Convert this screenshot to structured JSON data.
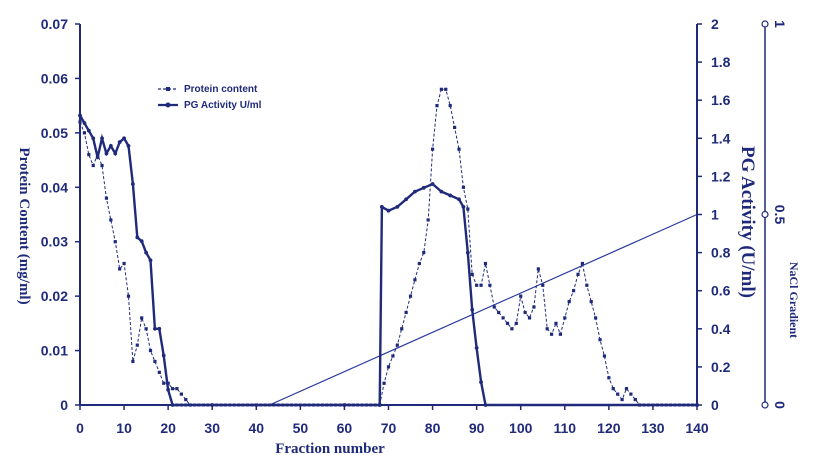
{
  "chart_data": {
    "type": "line",
    "xlabel": "Fraction number",
    "y_left_label": "Protein Content (mg/ml)",
    "y_right_label": "PG Activity (U/ml)",
    "y_right2_label": "NaCl Gradient",
    "xlim": [
      0,
      140
    ],
    "y_left_lim": [
      0,
      0.07
    ],
    "y_right_lim": [
      0,
      2
    ],
    "y_right2_lim": [
      0,
      1
    ],
    "x_ticks": [
      "0",
      "10",
      "20",
      "30",
      "40",
      "50",
      "60",
      "70",
      "80",
      "90",
      "100",
      "110",
      "120",
      "130",
      "140"
    ],
    "y_left_ticks": [
      "0",
      "0.01",
      "0.02",
      "0.03",
      "0.04",
      "0.05",
      "0.06",
      "0.07"
    ],
    "y_right_ticks": [
      "0",
      "0.2",
      "0.4",
      "0.6",
      "0.8",
      "1",
      "1.2",
      "1.4",
      "1.6",
      "1.8",
      "2"
    ],
    "y_right2_ticks": [
      "0",
      "0.5",
      "1"
    ],
    "legend": [
      {
        "label": "Protein content",
        "style": "dashed"
      },
      {
        "label": "PG Activity U/ml",
        "style": "solid"
      }
    ],
    "legend_position": "top-left",
    "colors": {
      "series": "#1f2a7a",
      "gradient": "#2a3aa0",
      "axes": "#1f2a7a"
    },
    "series": [
      {
        "name": "Protein content",
        "axis": "left",
        "points": [
          [
            0,
            0.052
          ],
          [
            1,
            0.05
          ],
          [
            2,
            0.046
          ],
          [
            3,
            0.044
          ],
          [
            4,
            0.046
          ],
          [
            5,
            0.044
          ],
          [
            6,
            0.038
          ],
          [
            7,
            0.034
          ],
          [
            8,
            0.03
          ],
          [
            9,
            0.025
          ],
          [
            10,
            0.026
          ],
          [
            11,
            0.02
          ],
          [
            12,
            0.008
          ],
          [
            13,
            0.011
          ],
          [
            14,
            0.016
          ],
          [
            15,
            0.014
          ],
          [
            16,
            0.01
          ],
          [
            17,
            0.008
          ],
          [
            18,
            0.006
          ],
          [
            19,
            0.004
          ],
          [
            20,
            0.004
          ],
          [
            21,
            0.003
          ],
          [
            22,
            0.003
          ],
          [
            23,
            0.002
          ],
          [
            24,
            0.001
          ],
          [
            25,
            0
          ],
          [
            40,
            0
          ],
          [
            60,
            0
          ],
          [
            68,
            0
          ],
          [
            69,
            0.004
          ],
          [
            70,
            0.007
          ],
          [
            71,
            0.009
          ],
          [
            72,
            0.011
          ],
          [
            73,
            0.014
          ],
          [
            74,
            0.017
          ],
          [
            75,
            0.02
          ],
          [
            76,
            0.023
          ],
          [
            77,
            0.026
          ],
          [
            78,
            0.028
          ],
          [
            79,
            0.034
          ],
          [
            80,
            0.047
          ],
          [
            81,
            0.055
          ],
          [
            82,
            0.058
          ],
          [
            83,
            0.058
          ],
          [
            84,
            0.055
          ],
          [
            85,
            0.051
          ],
          [
            86,
            0.047
          ],
          [
            87,
            0.04
          ],
          [
            88,
            0.036
          ],
          [
            89,
            0.024
          ],
          [
            90,
            0.022
          ],
          [
            91,
            0.022
          ],
          [
            92,
            0.026
          ],
          [
            93,
            0.022
          ],
          [
            94,
            0.018
          ],
          [
            95,
            0.017
          ],
          [
            96,
            0.016
          ],
          [
            97,
            0.015
          ],
          [
            98,
            0.014
          ],
          [
            99,
            0.015
          ],
          [
            100,
            0.02
          ],
          [
            101,
            0.017
          ],
          [
            102,
            0.016
          ],
          [
            103,
            0.018
          ],
          [
            104,
            0.025
          ],
          [
            105,
            0.022
          ],
          [
            106,
            0.014
          ],
          [
            107,
            0.013
          ],
          [
            108,
            0.015
          ],
          [
            109,
            0.013
          ],
          [
            110,
            0.016
          ],
          [
            111,
            0.019
          ],
          [
            112,
            0.021
          ],
          [
            113,
            0.024
          ],
          [
            114,
            0.026
          ],
          [
            115,
            0.022
          ],
          [
            116,
            0.019
          ],
          [
            117,
            0.016
          ],
          [
            118,
            0.012
          ],
          [
            119,
            0.009
          ],
          [
            120,
            0.005
          ],
          [
            121,
            0.003
          ],
          [
            122,
            0.002
          ],
          [
            123,
            0.001
          ],
          [
            124,
            0.003
          ],
          [
            125,
            0.002
          ],
          [
            126,
            0.001
          ],
          [
            127,
            0
          ],
          [
            140,
            0
          ]
        ]
      },
      {
        "name": "PG Activity U/ml",
        "axis": "right",
        "points": [
          [
            0,
            1.52
          ],
          [
            1,
            1.48
          ],
          [
            2,
            1.44
          ],
          [
            3,
            1.4
          ],
          [
            4,
            1.3
          ],
          [
            5,
            1.4
          ],
          [
            6,
            1.32
          ],
          [
            7,
            1.36
          ],
          [
            8,
            1.32
          ],
          [
            9,
            1.38
          ],
          [
            10,
            1.4
          ],
          [
            11,
            1.36
          ],
          [
            12,
            1.16
          ],
          [
            13,
            0.88
          ],
          [
            14,
            0.86
          ],
          [
            15,
            0.8
          ],
          [
            16,
            0.76
          ],
          [
            17,
            0.4
          ],
          [
            18,
            0.4
          ],
          [
            19,
            0.26
          ],
          [
            20,
            0.08
          ],
          [
            21,
            0
          ],
          [
            30,
            0
          ],
          [
            60,
            0
          ],
          [
            68,
            0
          ],
          [
            68.5,
            1.04
          ],
          [
            70,
            1.02
          ],
          [
            72,
            1.04
          ],
          [
            74,
            1.08
          ],
          [
            76,
            1.12
          ],
          [
            78,
            1.14
          ],
          [
            80,
            1.16
          ],
          [
            82,
            1.12
          ],
          [
            84,
            1.1
          ],
          [
            86,
            1.08
          ],
          [
            87,
            1.04
          ],
          [
            88,
            0.8
          ],
          [
            89,
            0.5
          ],
          [
            90,
            0.3
          ],
          [
            91,
            0.12
          ],
          [
            92,
            0
          ],
          [
            140,
            0
          ]
        ]
      }
    ],
    "gradient_line": {
      "name": "NaCl Gradient",
      "axis": "right2",
      "points": [
        [
          43,
          0
        ],
        [
          140,
          0.5
        ]
      ]
    }
  }
}
